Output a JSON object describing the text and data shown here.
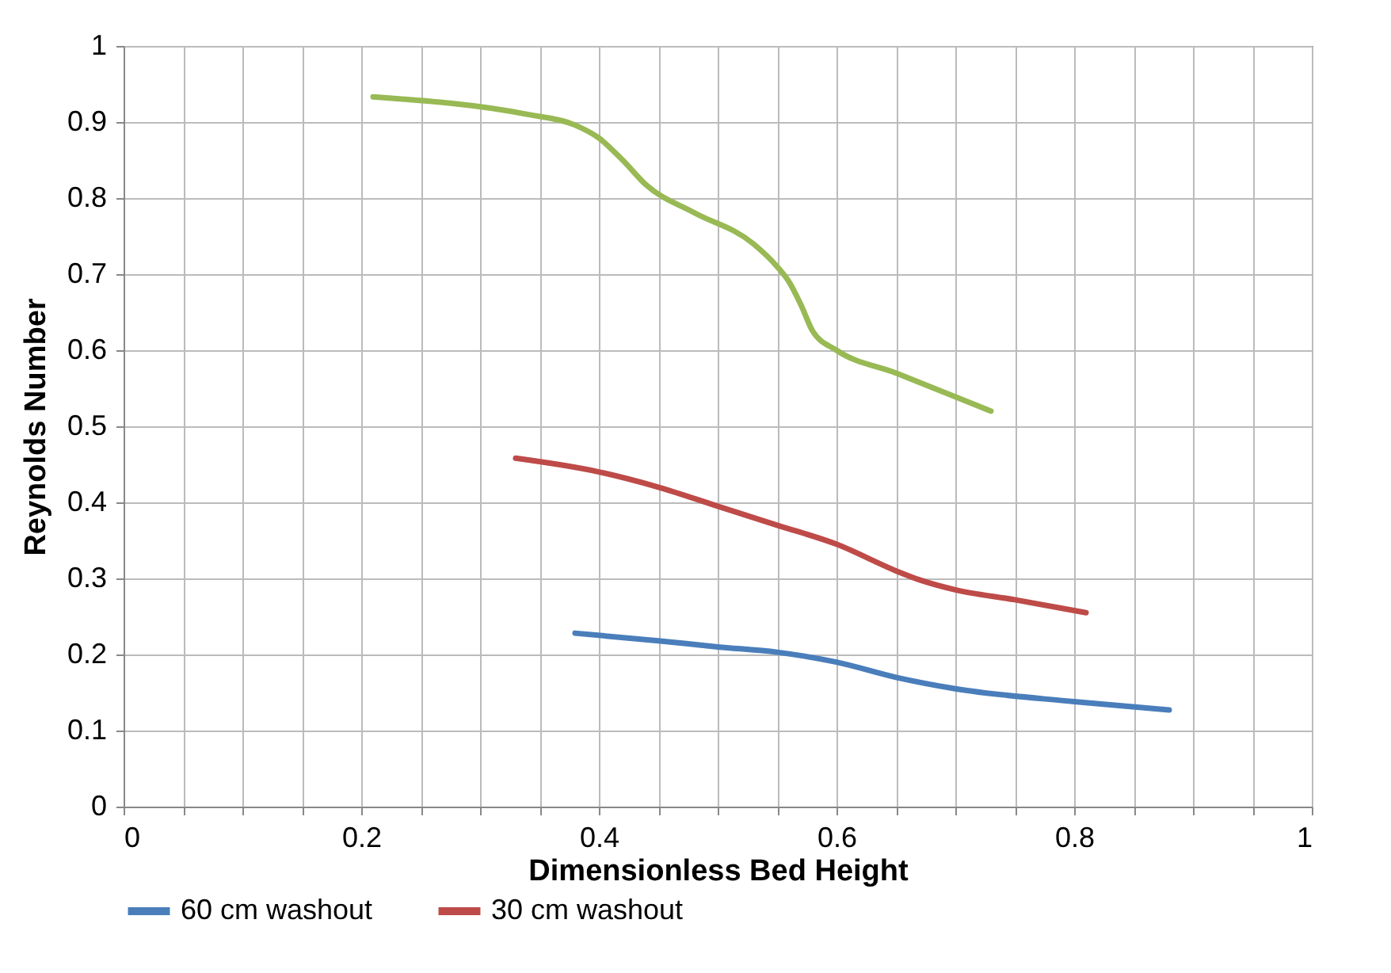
{
  "chart_data": {
    "type": "line",
    "xlabel": "Dimensionless Bed Height",
    "ylabel": "Reynolds Number",
    "xlim": [
      0,
      1
    ],
    "ylim": [
      0,
      1
    ],
    "xticks": [
      0,
      {
        "value": 0.05,
        "label": null
      },
      {
        "value": 0.1,
        "label": null
      },
      {
        "value": 0.15,
        "label": null
      },
      0.2,
      {
        "value": 0.25,
        "label": null
      },
      {
        "value": 0.3,
        "label": null
      },
      {
        "value": 0.35,
        "label": null
      },
      0.4,
      {
        "value": 0.45,
        "label": null
      },
      {
        "value": 0.5,
        "label": null
      },
      {
        "value": 0.55,
        "label": null
      },
      0.6,
      {
        "value": 0.65,
        "label": null
      },
      {
        "value": 0.7,
        "label": null
      },
      {
        "value": 0.75,
        "label": null
      },
      0.8,
      {
        "value": 0.85,
        "label": null
      },
      {
        "value": 0.9,
        "label": null
      },
      {
        "value": 0.95,
        "label": null
      },
      1
    ],
    "yticks": [
      0,
      0.1,
      0.2,
      0.3,
      0.4,
      0.5,
      0.6,
      0.7,
      0.8,
      0.9,
      1
    ],
    "grid": true,
    "legend": "bottom",
    "marker": "none",
    "line_style": "solid",
    "series": [
      {
        "name": "60 cm washout",
        "color": "#4a7ebb",
        "x": [
          0.38,
          0.45,
          0.5,
          0.55,
          0.6,
          0.65,
          0.7,
          0.8,
          0.88
        ],
        "values": [
          0.228,
          0.218,
          0.21,
          0.203,
          0.19,
          0.17,
          0.155,
          0.138,
          0.127
        ]
      },
      {
        "name": "30 cm washout",
        "color": "#be4b48",
        "x": [
          0.33,
          0.4,
          0.45,
          0.5,
          0.55,
          0.6,
          0.65,
          0.67,
          0.7,
          0.75,
          0.81
        ],
        "values": [
          0.458,
          0.44,
          0.42,
          0.395,
          0.37,
          0.345,
          0.31,
          0.298,
          0.285,
          0.272,
          0.255
        ]
      },
      {
        "color": "#98b954",
        "x": [
          0.21,
          0.34,
          0.38,
          0.4,
          0.42,
          0.44,
          0.48,
          0.53,
          0.55,
          0.56,
          0.57,
          0.58,
          0.6,
          0.65,
          0.73
        ],
        "values": [
          0.933,
          0.91,
          0.896,
          0.879,
          0.85,
          0.817,
          0.781,
          0.74,
          0.71,
          0.69,
          0.66,
          0.625,
          0.6,
          0.57,
          0.52
        ]
      }
    ]
  }
}
